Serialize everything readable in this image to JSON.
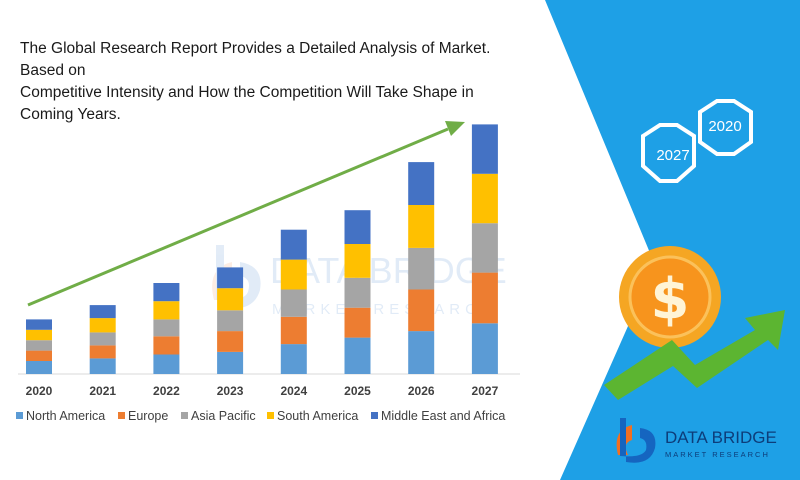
{
  "title_lines": [
    "The Global Research Report Provides a Detailed Analysis of Market. Based on",
    "Competitive Intensity and How the Competition Will Take Shape in Coming Years."
  ],
  "hexagons": {
    "first": "2027",
    "second": "2020"
  },
  "watermark": {
    "line1": "DATA BRIDGE",
    "line2": "MARKET RESEARCH"
  },
  "logo": {
    "name": "DATA BRIDGE",
    "tagline": "MARKET RESEARCH"
  },
  "colors": {
    "north_america": "#5b9bd5",
    "europe": "#ed7d31",
    "asia_pacific": "#a5a5a5",
    "south_america": "#ffc000",
    "middle_east_africa": "#4472c4",
    "trend_arrow": "#70ad47",
    "panel_blue": "#1ea0e6",
    "coin": "#f5a623"
  },
  "icons": [
    "trend-arrow-icon",
    "hexagon-icon",
    "dollar-coin-icon",
    "growth-arrow-icon",
    "data-bridge-logo-icon"
  ],
  "chart_data": {
    "type": "bar",
    "stacked": true,
    "categories": [
      "2020",
      "2021",
      "2022",
      "2023",
      "2024",
      "2025",
      "2026",
      "2027"
    ],
    "series": [
      {
        "name": "North America",
        "values": [
          1.0,
          1.2,
          1.5,
          1.7,
          2.3,
          2.8,
          3.3,
          3.9
        ]
      },
      {
        "name": "Europe",
        "values": [
          0.8,
          1.0,
          1.4,
          1.6,
          2.1,
          2.3,
          3.2,
          3.9
        ]
      },
      {
        "name": "Asia Pacific",
        "values": [
          0.8,
          1.0,
          1.3,
          1.6,
          2.1,
          2.3,
          3.2,
          3.8
        ]
      },
      {
        "name": "South America",
        "values": [
          0.8,
          1.1,
          1.4,
          1.7,
          2.3,
          2.6,
          3.3,
          3.8
        ]
      },
      {
        "name": "Middle East and Africa",
        "values": [
          0.8,
          1.0,
          1.4,
          1.6,
          2.3,
          2.6,
          3.3,
          3.8
        ]
      }
    ],
    "xlabel": "",
    "ylabel": "",
    "ylim": [
      0,
      20
    ],
    "grid": false,
    "legend_position": "bottom"
  }
}
